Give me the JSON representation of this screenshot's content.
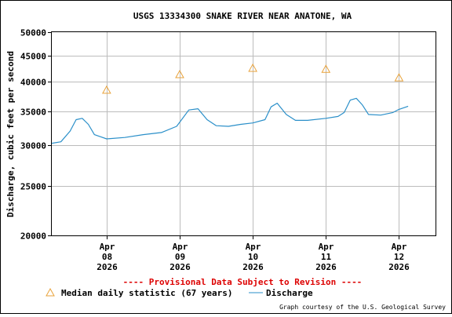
{
  "chart_data": {
    "type": "line",
    "title": "USGS 13334300 SNAKE RIVER NEAR ANATONE, WA",
    "ylabel": "Discharge, cubic feet per second",
    "xlabel": "",
    "y_scale": "log",
    "ylim": [
      20000,
      50000
    ],
    "y_ticks": [
      20000,
      25000,
      30000,
      35000,
      40000,
      45000,
      50000
    ],
    "y_tick_labels": [
      "20000",
      "25000",
      "30000",
      "35000",
      "40000",
      "45000",
      "50000"
    ],
    "x_range": [
      "2026-04-07 06:00",
      "2026-04-12 12:00"
    ],
    "x_ticks": [
      {
        "date": "2026-04-08",
        "month": "Apr",
        "day": "08",
        "year": "2026"
      },
      {
        "date": "2026-04-09",
        "month": "Apr",
        "day": "09",
        "year": "2026"
      },
      {
        "date": "2026-04-10",
        "month": "Apr",
        "day": "10",
        "year": "2026"
      },
      {
        "date": "2026-04-11",
        "month": "Apr",
        "day": "11",
        "year": "2026"
      },
      {
        "date": "2026-04-12",
        "month": "Apr",
        "day": "12",
        "year": "2026"
      }
    ],
    "grid": true,
    "series": [
      {
        "name": "Discharge",
        "color": "#2a8fc9",
        "style": "line",
        "x": [
          "2026-04-07 06:00",
          "2026-04-07 09:00",
          "2026-04-07 12:00",
          "2026-04-07 14:00",
          "2026-04-07 16:00",
          "2026-04-07 18:00",
          "2026-04-07 20:00",
          "2026-04-08 00:00",
          "2026-04-08 06:00",
          "2026-04-08 12:00",
          "2026-04-08 18:00",
          "2026-04-08 23:00",
          "2026-04-09 03:00",
          "2026-04-09 06:00",
          "2026-04-09 09:00",
          "2026-04-09 12:00",
          "2026-04-09 16:00",
          "2026-04-09 20:00",
          "2026-04-10 00:00",
          "2026-04-10 04:00",
          "2026-04-10 06:00",
          "2026-04-10 08:00",
          "2026-04-10 11:00",
          "2026-04-10 14:00",
          "2026-04-10 18:00",
          "2026-04-11 00:00",
          "2026-04-11 04:00",
          "2026-04-11 06:00",
          "2026-04-11 08:00",
          "2026-04-11 10:00",
          "2026-04-11 12:00",
          "2026-04-11 14:00",
          "2026-04-11 18:00",
          "2026-04-11 22:00",
          "2026-04-12 00:00",
          "2026-04-12 03:00"
        ],
        "values": [
          30300,
          30500,
          32000,
          33700,
          33900,
          33000,
          31500,
          30900,
          31100,
          31500,
          31800,
          32700,
          35200,
          35400,
          33700,
          32800,
          32700,
          33000,
          33200,
          33700,
          35700,
          36300,
          34500,
          33600,
          33600,
          33900,
          34200,
          34800,
          36800,
          37100,
          36000,
          34500,
          34400,
          34800,
          35300,
          35800
        ]
      },
      {
        "name": "Median daily statistic (67 years)",
        "color": "#e8a23a",
        "style": "marker-triangle",
        "x": [
          "2026-04-08 00:00",
          "2026-04-09 00:00",
          "2026-04-10 00:00",
          "2026-04-11 00:00",
          "2026-04-12 00:00"
        ],
        "values": [
          38500,
          41300,
          42500,
          42300,
          40700
        ]
      }
    ],
    "annotation": "---- Provisional Data Subject to Revision ----",
    "credit": "Graph courtesy of the U.S. Geological Survey",
    "legend_position": "bottom",
    "legend_items": [
      {
        "label": "Median daily statistic (67 years)",
        "symbol": "triangle",
        "color": "#e8a23a"
      },
      {
        "label": "Discharge",
        "symbol": "line",
        "color": "#2a8fc9"
      }
    ],
    "colors": {
      "axes": "#000000",
      "grid": "#bcbcbc",
      "annotation": "#dd0000"
    }
  }
}
